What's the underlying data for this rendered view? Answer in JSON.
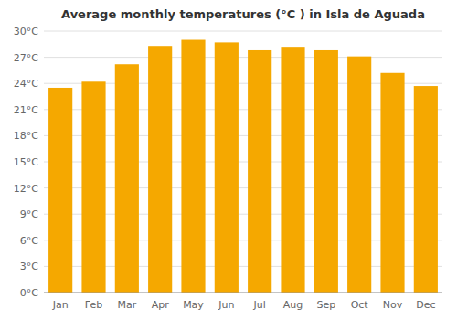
{
  "chart_data": {
    "type": "bar",
    "title": "Average monthly temperatures (°C ) in Isla de Aguada",
    "categories": [
      "Jan",
      "Feb",
      "Mar",
      "Apr",
      "May",
      "Jun",
      "Jul",
      "Aug",
      "Sep",
      "Oct",
      "Nov",
      "Dec"
    ],
    "values": [
      23.5,
      24.2,
      26.2,
      28.3,
      29.0,
      28.7,
      27.8,
      28.2,
      27.8,
      27.1,
      25.2,
      23.7
    ],
    "color": "#F5A800",
    "ylim": [
      0,
      30
    ],
    "yticks": [
      {
        "value": 0,
        "label": "0°C"
      },
      {
        "value": 3,
        "label": "3°C"
      },
      {
        "value": 6,
        "label": "6°C"
      },
      {
        "value": 9,
        "label": "9°C"
      },
      {
        "value": 12,
        "label": "12°C"
      },
      {
        "value": 15,
        "label": "15°C"
      },
      {
        "value": 18,
        "label": "18°C"
      },
      {
        "value": 21,
        "label": "21°C"
      },
      {
        "value": 24,
        "label": "24°C"
      },
      {
        "value": 27,
        "label": "27°C"
      },
      {
        "value": 30,
        "label": "30°C"
      }
    ],
    "grid": true
  }
}
